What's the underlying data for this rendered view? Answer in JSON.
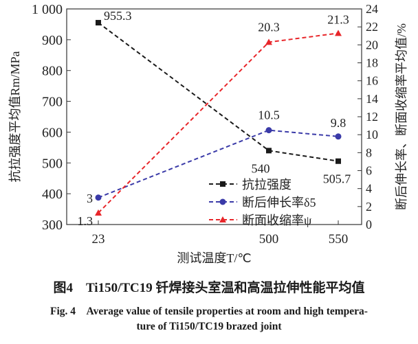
{
  "chart_data": {
    "type": "line",
    "x": [
      23,
      500,
      550
    ],
    "xlabel": "测试温度T/℃",
    "ylabel_left": "抗拉强度平均值Rm/MPa",
    "ylabel_right": "断后伸长率、断面收缩率平均值/%",
    "ylim_left": [
      300,
      1000
    ],
    "ylim_right": [
      0,
      24
    ],
    "yticks_left": [
      "300",
      "400",
      "500",
      "600",
      "700",
      "800",
      "900",
      "1 000"
    ],
    "yticks_right": [
      "0",
      "2",
      "4",
      "6",
      "8",
      "10",
      "12",
      "14",
      "16",
      "18",
      "20",
      "22",
      "24"
    ],
    "xticks": [
      "23",
      "500",
      "550"
    ],
    "legend_position": "bottom-right",
    "series": [
      {
        "name": "抗拉强度",
        "axis": "left",
        "values": [
          955.3,
          540,
          505.7
        ],
        "labels": [
          "955.3",
          "540",
          "505.7"
        ],
        "color": "#1a1a1a",
        "marker": "square"
      },
      {
        "name": "断后伸长率δ5",
        "axis": "right",
        "values": [
          3,
          10.5,
          9.8
        ],
        "labels": [
          "3",
          "10.5",
          "9.8"
        ],
        "color": "#3a3aa8",
        "marker": "circle"
      },
      {
        "name": "断面收缩率ψ",
        "axis": "right",
        "values": [
          1.3,
          20.3,
          21.3
        ],
        "labels": [
          "1.3",
          "20.3",
          "21.3"
        ],
        "color": "#e8262a",
        "marker": "triangle"
      }
    ]
  },
  "caption": {
    "cn": "图4　Ti150/TC19 钎焊接头室温和高温拉伸性能平均值",
    "en1": "Fig. 4　Average value of tensile properties at room and high tempera-",
    "en2": "ture of Ti150/TC19 brazed joint"
  }
}
